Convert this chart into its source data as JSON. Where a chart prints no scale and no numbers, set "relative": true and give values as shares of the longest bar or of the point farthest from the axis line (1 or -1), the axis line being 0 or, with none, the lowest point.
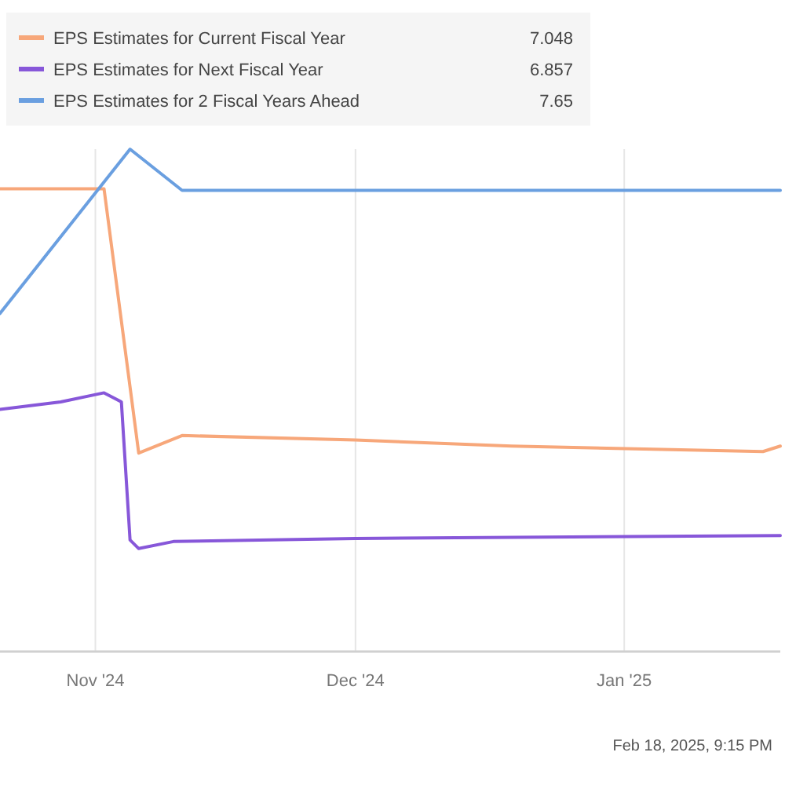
{
  "chart_data": {
    "type": "line",
    "relative": true,
    "legend": "top left",
    "grid": "x",
    "marker": "none",
    "line_style": "solid",
    "xlim": [
      "2024-10-21",
      "2025-01-19"
    ],
    "xticks": [
      {
        "value": "2024-11-01",
        "label": "Nov '24"
      },
      {
        "value": "2024-12-01",
        "label": "Dec '24"
      },
      {
        "value": "2025-01-01",
        "label": "Jan '25"
      }
    ],
    "series": [
      {
        "name": "EPS Estimates for Current Fiscal Year",
        "color": "#f7a77a",
        "x": [
          "2024-10-21",
          "2024-11-02",
          "2024-11-06",
          "2024-11-11",
          "2024-12-01",
          "2024-12-19",
          "2025-01-17",
          "2025-01-19"
        ],
        "values": [
          0.921,
          0.921,
          0.395,
          0.43,
          0.421,
          0.409,
          0.398,
          0.409
        ]
      },
      {
        "name": "EPS Estimates for Next Fiscal Year",
        "color": "#8757d9",
        "x": [
          "2024-10-21",
          "2024-10-28",
          "2024-11-02",
          "2024-11-04",
          "2024-11-05",
          "2024-11-06",
          "2024-11-10",
          "2024-12-01",
          "2025-01-19"
        ],
        "values": [
          0.482,
          0.497,
          0.515,
          0.497,
          0.222,
          0.205,
          0.219,
          0.225,
          0.231
        ]
      },
      {
        "name": "EPS Estimates for 2 Fiscal Years Ahead",
        "color": "#6a9fe0",
        "x": [
          "2024-10-21",
          "2024-11-05",
          "2024-11-11",
          "2025-01-19"
        ],
        "values": [
          0.673,
          1,
          0.918,
          0.918
        ]
      }
    ],
    "annotations": [
      "7.048",
      "6.857",
      "7.65",
      "Feb 18, 2025, 9:15 PM"
    ]
  }
}
